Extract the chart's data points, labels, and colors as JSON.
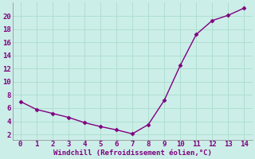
{
  "x": [
    0,
    1,
    2,
    3,
    4,
    5,
    6,
    7,
    8,
    9,
    10,
    11,
    12,
    13,
    14
  ],
  "y": [
    7.0,
    5.8,
    5.2,
    4.6,
    3.8,
    3.2,
    2.7,
    2.1,
    3.5,
    7.2,
    12.5,
    17.2,
    19.3,
    20.1,
    21.2
  ],
  "line_color": "#800080",
  "marker_color": "#800080",
  "background_color": "#cceee8",
  "grid_color": "#aaddcc",
  "xlabel": "Windchill (Refroidissement éolien,°C)",
  "xlabel_color": "#800080",
  "tick_color": "#800080",
  "spine_color": "#888888",
  "xlim": [
    -0.5,
    14.5
  ],
  "ylim": [
    1.2,
    22.0
  ],
  "yticks": [
    2,
    4,
    6,
    8,
    10,
    12,
    14,
    16,
    18,
    20
  ],
  "xticks": [
    0,
    1,
    2,
    3,
    4,
    5,
    6,
    7,
    8,
    9,
    10,
    11,
    12,
    13,
    14
  ],
  "font_size": 6.5,
  "xlabel_font_size": 6.5
}
